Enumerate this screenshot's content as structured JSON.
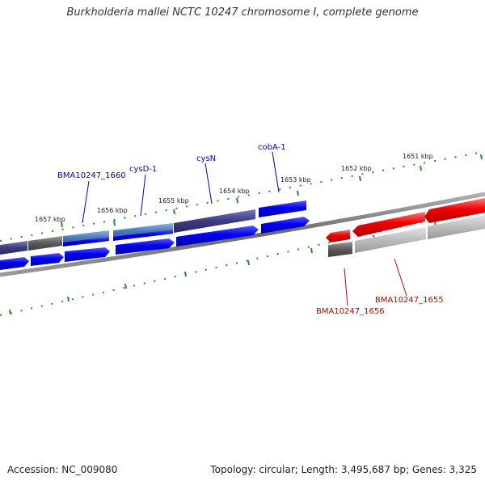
{
  "title": "Burkholderia mallei NCTC 10247 chromosome I, complete genome",
  "footer": {
    "accession": "Accession: NC_009080",
    "summary": "Topology: circular; Length: 3,495,687 bp; Genes: 3,325"
  },
  "colors": {
    "ruler": "#2e8b2e",
    "blue_feature": "#0000ee",
    "navy_feature": "#3d3a80",
    "steel_feature": "#4a78b8",
    "gray_feature": "#5a5a5a",
    "red_feature": "#ee0000",
    "light_feature": "#bbbbbb",
    "backbone": "#777777",
    "label_blue": "#0000cc",
    "label_red": "#cc0000"
  },
  "ruler_labels": [
    "1657 kbp",
    "1656 kbp",
    "1655 kbp",
    "1654 kbp",
    "1653 kbp",
    "1652 kbp",
    "1651 kbp"
  ],
  "gene_labels": {
    "bma1660": "BMA10247_1660",
    "cysd1": "cysD-1",
    "cysn": "cysN",
    "coba1": "cobA-1",
    "bma1655": "BMA10247_1655",
    "bma1656": "BMA10247_1656"
  }
}
